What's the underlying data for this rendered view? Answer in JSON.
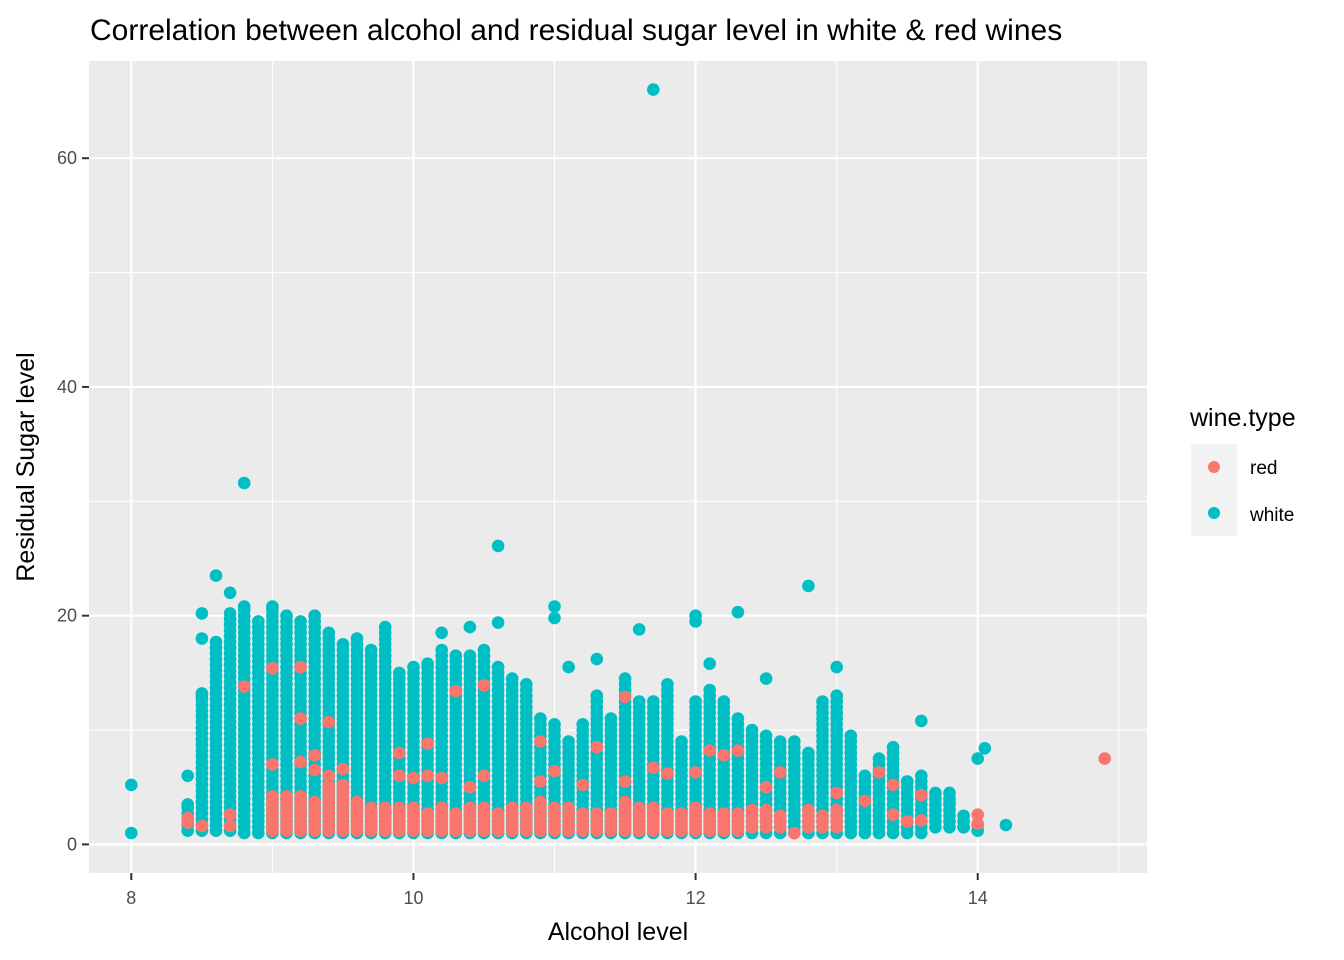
{
  "chart_data": {
    "type": "scatter",
    "title": "Correlation between alcohol and residual sugar level in white & red wines",
    "xlabel": "Alcohol level",
    "ylabel": "Residual Sugar level",
    "xlim": [
      7.7,
      15.2
    ],
    "ylim": [
      -2.5,
      68.5
    ],
    "x_ticks": [
      8,
      10,
      12,
      14
    ],
    "y_ticks": [
      0,
      20,
      40,
      60
    ],
    "grid": true,
    "legend": {
      "title": "wine.type",
      "placement": "right",
      "entries": [
        "red",
        "white"
      ]
    },
    "colors": {
      "red": "#F8766D",
      "white": "#00BFC4",
      "panel": "#EBEBEB",
      "grid": "#FFFFFF"
    },
    "series": [
      {
        "name": "white",
        "color": "#00BFC4",
        "bands": [
          [
            8.4,
            1.2,
            3.5
          ],
          [
            8.5,
            1.2,
            13.5
          ],
          [
            8.6,
            1.2,
            18
          ],
          [
            8.7,
            1.2,
            20.5
          ],
          [
            8.8,
            1.0,
            20.8
          ],
          [
            8.9,
            1.0,
            19.5
          ],
          [
            9.0,
            1.0,
            20.8
          ],
          [
            9.1,
            1.0,
            20.2
          ],
          [
            9.2,
            1.0,
            19.8
          ],
          [
            9.3,
            1.0,
            20.0
          ],
          [
            9.4,
            1.0,
            18.5
          ],
          [
            9.5,
            1.0,
            17.8
          ],
          [
            9.6,
            1.0,
            18.0
          ],
          [
            9.7,
            1.0,
            17.3
          ],
          [
            9.8,
            1.0,
            19.4
          ],
          [
            9.9,
            1.0,
            15.3
          ],
          [
            10.0,
            1.0,
            15.8
          ],
          [
            10.1,
            1.0,
            15.5
          ],
          [
            10.2,
            1.0,
            17.0
          ],
          [
            10.3,
            1.0,
            16.0
          ],
          [
            10.4,
            1.0,
            16.5
          ],
          [
            10.5,
            1.0,
            17.0
          ],
          [
            10.6,
            1.0,
            15.5
          ],
          [
            10.7,
            1.0,
            14.5
          ],
          [
            10.8,
            1.0,
            14.0
          ],
          [
            10.9,
            1.0,
            11.2
          ],
          [
            11.0,
            1.0,
            10.8
          ],
          [
            11.1,
            1.0,
            9.0
          ],
          [
            11.2,
            1.0,
            10.5
          ],
          [
            11.3,
            1.0,
            13.0
          ],
          [
            11.4,
            1.0,
            11.0
          ],
          [
            11.5,
            1.0,
            14.0
          ],
          [
            11.6,
            1.0,
            12.5
          ],
          [
            11.7,
            1.0,
            12.5
          ],
          [
            11.8,
            1.0,
            14.0
          ],
          [
            11.9,
            1.0,
            9.0
          ],
          [
            12.0,
            1.0,
            12.5
          ],
          [
            12.1,
            1.0,
            13.5
          ],
          [
            12.2,
            1.0,
            12.5
          ],
          [
            12.3,
            1.0,
            11.0
          ],
          [
            12.4,
            1.0,
            10.0
          ],
          [
            12.5,
            1.0,
            9.5
          ],
          [
            12.6,
            1.0,
            9.0
          ],
          [
            12.7,
            1.0,
            9.0
          ],
          [
            12.8,
            1.0,
            8.0
          ],
          [
            12.9,
            1.0,
            12.8
          ],
          [
            13.0,
            1.0,
            13.0
          ],
          [
            13.1,
            1.0,
            9.5
          ],
          [
            13.2,
            1.0,
            6.0
          ],
          [
            13.3,
            1.0,
            7.5
          ],
          [
            13.4,
            1.0,
            8.5
          ],
          [
            13.5,
            1.0,
            5.5
          ],
          [
            13.6,
            1.0,
            6.0
          ],
          [
            13.7,
            1.5,
            4.5
          ],
          [
            13.8,
            1.5,
            4.5
          ],
          [
            13.9,
            1.5,
            2.5
          ],
          [
            14.0,
            1.2,
            2.0
          ]
        ],
        "points": [
          [
            8.0,
            5.2
          ],
          [
            8.0,
            1.0
          ],
          [
            8.4,
            6.0
          ],
          [
            8.4,
            3.5
          ],
          [
            8.5,
            9.2
          ],
          [
            8.5,
            13.0
          ],
          [
            8.5,
            18.0
          ],
          [
            8.5,
            20.2
          ],
          [
            8.6,
            23.5
          ],
          [
            8.7,
            22.0
          ],
          [
            8.8,
            31.6
          ],
          [
            8.8,
            20.8
          ],
          [
            9.0,
            20.8
          ],
          [
            10.6,
            26.1
          ],
          [
            10.1,
            15.8
          ],
          [
            10.2,
            18.5
          ],
          [
            10.3,
            16.5
          ],
          [
            10.4,
            19.0
          ],
          [
            10.6,
            19.4
          ],
          [
            11.0,
            20.8
          ],
          [
            11.0,
            19.8
          ],
          [
            11.1,
            15.5
          ],
          [
            11.3,
            16.2
          ],
          [
            11.5,
            14.5
          ],
          [
            11.6,
            18.8
          ],
          [
            11.7,
            66.0
          ],
          [
            12.0,
            20.0
          ],
          [
            12.0,
            19.5
          ],
          [
            12.1,
            15.8
          ],
          [
            12.3,
            20.3
          ],
          [
            12.5,
            14.5
          ],
          [
            12.8,
            22.6
          ],
          [
            13.0,
            15.5
          ],
          [
            13.5,
            5.5
          ],
          [
            13.6,
            10.8
          ],
          [
            14.0,
            7.5
          ],
          [
            14.05,
            8.4
          ],
          [
            14.2,
            1.7
          ],
          [
            13.9,
            1.5
          ],
          [
            13.8,
            3.6
          ]
        ]
      },
      {
        "name": "red",
        "color": "#F8766D",
        "bands": [
          [
            9.0,
            1.2,
            4.5
          ],
          [
            9.1,
            1.2,
            4.2
          ],
          [
            9.2,
            1.2,
            4.5
          ],
          [
            9.3,
            1.2,
            4.0
          ],
          [
            9.4,
            1.2,
            5.5
          ],
          [
            9.5,
            1.2,
            5.5
          ],
          [
            9.6,
            1.2,
            4.0
          ],
          [
            9.7,
            1.2,
            3.5
          ],
          [
            9.8,
            1.2,
            3.5
          ],
          [
            9.9,
            1.2,
            3.5
          ],
          [
            10.0,
            1.2,
            3.5
          ],
          [
            10.1,
            1.2,
            3.0
          ],
          [
            10.2,
            1.2,
            3.5
          ],
          [
            10.3,
            1.2,
            3.0
          ],
          [
            10.4,
            1.2,
            3.5
          ],
          [
            10.5,
            1.2,
            3.5
          ],
          [
            10.6,
            1.2,
            3.0
          ],
          [
            10.7,
            1.2,
            3.5
          ],
          [
            10.8,
            1.2,
            3.5
          ],
          [
            10.9,
            1.2,
            4.0
          ],
          [
            11.0,
            1.2,
            3.5
          ],
          [
            11.1,
            1.2,
            3.5
          ],
          [
            11.2,
            1.2,
            3.0
          ],
          [
            11.3,
            1.2,
            3.0
          ],
          [
            11.4,
            1.2,
            3.0
          ],
          [
            11.5,
            1.2,
            4.0
          ],
          [
            11.6,
            1.2,
            3.5
          ],
          [
            11.7,
            1.2,
            3.5
          ],
          [
            11.8,
            1.2,
            3.0
          ],
          [
            11.9,
            1.2,
            3.0
          ],
          [
            12.0,
            1.2,
            3.5
          ],
          [
            12.1,
            1.2,
            3.0
          ],
          [
            12.2,
            1.2,
            3.0
          ],
          [
            12.3,
            1.2,
            3.0
          ],
          [
            12.4,
            1.5,
            3.0
          ],
          [
            12.5,
            1.5,
            3.0
          ],
          [
            12.6,
            1.5,
            2.5
          ],
          [
            12.8,
            1.5,
            3.0
          ],
          [
            12.9,
            1.5,
            2.5
          ],
          [
            13.0,
            1.5,
            3.0
          ]
        ],
        "points": [
          [
            8.4,
            1.9
          ],
          [
            8.4,
            2.3
          ],
          [
            8.5,
            1.6
          ],
          [
            8.7,
            2.6
          ],
          [
            8.7,
            1.6
          ],
          [
            8.8,
            13.8
          ],
          [
            9.0,
            15.4
          ],
          [
            9.2,
            15.5
          ],
          [
            9.2,
            11.0
          ],
          [
            9.4,
            10.7
          ],
          [
            9.0,
            7.0
          ],
          [
            9.2,
            7.2
          ],
          [
            9.3,
            6.5
          ],
          [
            9.3,
            7.8
          ],
          [
            9.4,
            6.0
          ],
          [
            9.5,
            6.6
          ],
          [
            9.9,
            8.0
          ],
          [
            9.9,
            6.0
          ],
          [
            10.0,
            5.8
          ],
          [
            10.1,
            8.8
          ],
          [
            10.1,
            6.0
          ],
          [
            10.2,
            5.8
          ],
          [
            10.3,
            13.4
          ],
          [
            10.4,
            5.0
          ],
          [
            10.5,
            13.9
          ],
          [
            10.5,
            6.0
          ],
          [
            10.9,
            9.0
          ],
          [
            10.9,
            5.5
          ],
          [
            11.0,
            6.4
          ],
          [
            11.2,
            5.2
          ],
          [
            11.3,
            8.5
          ],
          [
            11.5,
            12.9
          ],
          [
            11.5,
            5.5
          ],
          [
            11.7,
            6.7
          ],
          [
            11.8,
            6.2
          ],
          [
            12.0,
            6.3
          ],
          [
            12.1,
            8.2
          ],
          [
            12.2,
            7.8
          ],
          [
            12.3,
            8.2
          ],
          [
            12.5,
            5.0
          ],
          [
            12.6,
            6.3
          ],
          [
            12.7,
            1.0
          ],
          [
            13.0,
            4.5
          ],
          [
            13.2,
            3.8
          ],
          [
            13.3,
            6.3
          ],
          [
            13.4,
            5.2
          ],
          [
            13.4,
            2.6
          ],
          [
            13.5,
            2.0
          ],
          [
            13.6,
            4.3
          ],
          [
            13.6,
            2.1
          ],
          [
            14.0,
            2.6
          ],
          [
            14.0,
            1.8
          ],
          [
            14.9,
            7.5
          ]
        ]
      }
    ]
  }
}
